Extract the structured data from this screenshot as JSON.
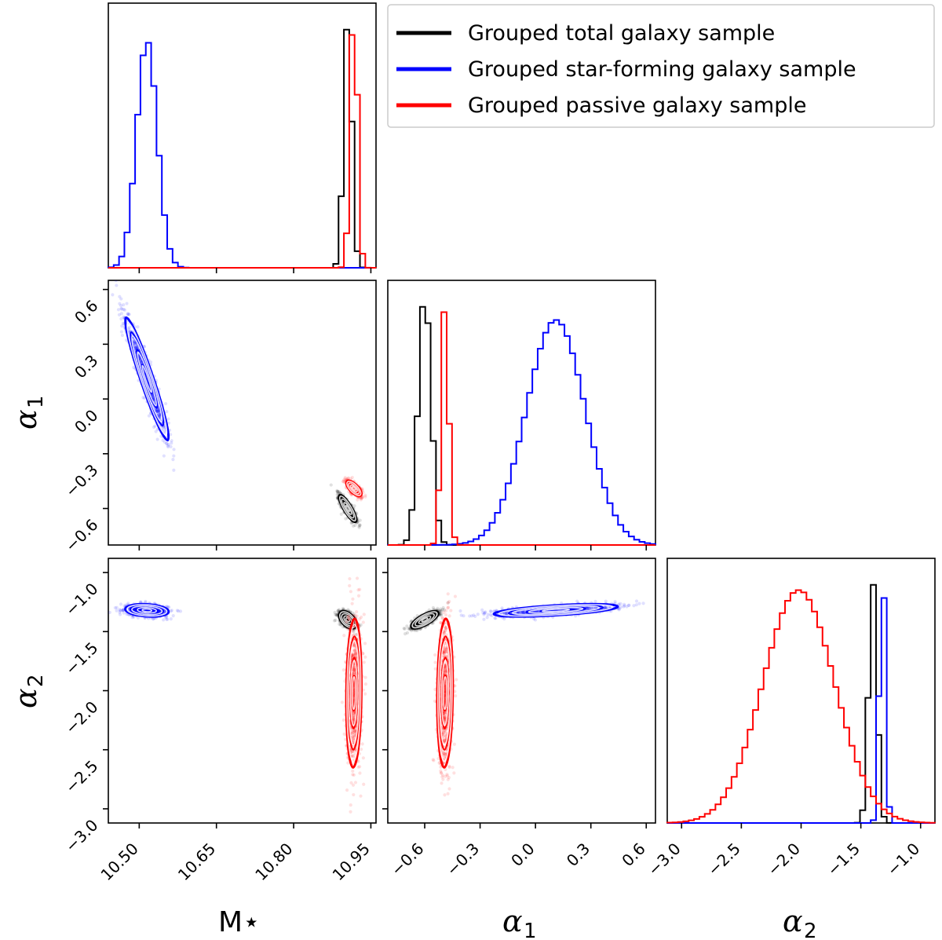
{
  "chart_data": {
    "type": "corner",
    "params": [
      "M*",
      "alpha_1",
      "alpha_2"
    ],
    "axis_labels": {
      "mstar": "M⋆",
      "alpha1_main": "α",
      "alpha1_sub": "1",
      "alpha2_main": "α",
      "alpha2_sub": "2"
    },
    "ranges": {
      "mstar": [
        10.44,
        10.96
      ],
      "alpha1": [
        -0.8,
        0.65
      ],
      "alpha2": [
        -3.12,
        -0.88
      ]
    },
    "ticks": {
      "mstar": {
        "values": [
          10.5,
          10.65,
          10.8,
          10.95
        ],
        "labels": [
          "10.50",
          "10.65",
          "10.80",
          "10.95"
        ]
      },
      "alpha1": {
        "values": [
          -0.6,
          -0.3,
          0.0,
          0.3,
          0.6
        ],
        "labels": [
          "−0.6",
          "−0.3",
          "0.0",
          "0.3",
          "0.6"
        ]
      },
      "alpha2": {
        "values": [
          -3.0,
          -2.5,
          -2.0,
          -1.5,
          -1.0
        ],
        "labels": [
          "−3.0",
          "−2.5",
          "−2.0",
          "−1.5",
          "−1.0"
        ]
      },
      "alpha1_y": {
        "values": [
          0.6,
          0.3,
          0.0,
          -0.3,
          -0.6
        ],
        "labels": [
          "0.6",
          "0.3",
          "0.0",
          "−0.3",
          "−0.6"
        ]
      },
      "alpha2_y": {
        "values": [
          -1.0,
          -1.5,
          -2.0,
          -2.5,
          -3.0
        ],
        "labels": [
          "−1.0",
          "−1.5",
          "−2.0",
          "−2.5",
          "−3.0"
        ]
      }
    },
    "legend": {
      "position": "top-right",
      "entries": [
        {
          "name": "Grouped total galaxy sample",
          "color": "#000000"
        },
        {
          "name": "Grouped star-forming galaxy sample",
          "color": "#0000ff"
        },
        {
          "name": "Grouped passive galaxy sample",
          "color": "#ff0000"
        }
      ]
    },
    "series": [
      {
        "name": "Grouped total galaxy sample",
        "color": "#000000",
        "mstar": {
          "mean": 10.905,
          "sd": 0.008
        },
        "alpha1": {
          "mean": -0.6,
          "sd": 0.035
        },
        "alpha2": {
          "mean": -1.4,
          "sd": 0.035
        },
        "corr_mstar_alpha1": -0.85,
        "corr_mstar_alpha2": -0.5,
        "corr_alpha1_alpha2": 0.75
      },
      {
        "name": "Grouped star-forming galaxy sample",
        "color": "#0000ff",
        "mstar": {
          "mean": 10.515,
          "sd": 0.02
        },
        "alpha1": {
          "mean": 0.11,
          "sd": 0.16
        },
        "alpha2": {
          "mean": -1.32,
          "sd": 0.025
        },
        "corr_mstar_alpha1": -0.95,
        "corr_mstar_alpha2": -0.2,
        "corr_alpha1_alpha2": 0.6
      },
      {
        "name": "Grouped passive galaxy sample",
        "color": "#ff0000",
        "mstar": {
          "mean": 10.917,
          "sd": 0.007
        },
        "alpha1": {
          "mean": -0.49,
          "sd": 0.02
        },
        "alpha2": {
          "mean": -2.02,
          "sd": 0.3
        },
        "corr_mstar_alpha1": -0.7,
        "corr_mstar_alpha2": 0.1,
        "corr_alpha1_alpha2": 0.1
      }
    ]
  }
}
